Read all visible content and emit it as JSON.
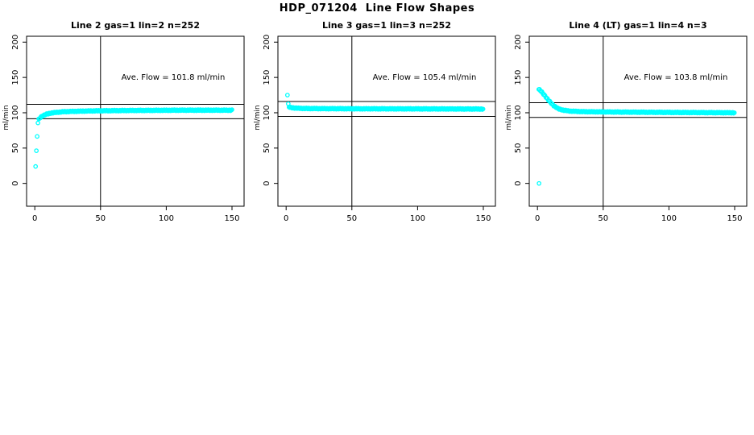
{
  "page": {
    "title": "HDP_071204  Line Flow Shapes",
    "background": "#ffffff"
  },
  "colors": {
    "points": "#00ffff",
    "axis": "#000000",
    "text": "#000000",
    "ref_line": "#000000"
  },
  "chart_data": [
    {
      "type": "scatter",
      "title": "Line 2 gas=1 lin=2 n=252",
      "annotation": "Ave. Flow =  101.8  ml/min",
      "ave_flow_ml_min": 101.8,
      "n_points_label": 252,
      "xlabel": "",
      "ylabel": "ml/min",
      "xticks": [
        0,
        50,
        100,
        150
      ],
      "yticks": [
        0,
        50,
        100,
        150,
        200
      ],
      "xlim": [
        -6.25,
        159.2
      ],
      "ylim": [
        -32.3,
        208.3
      ],
      "grid": false,
      "vline_x": 50,
      "ref_lines_y": [
        91.6,
        112.0
      ],
      "point_step_x": 0.6,
      "jitter_amp": 0.8,
      "curve_points": [
        [
          0.6,
          24
        ],
        [
          1.8,
          67
        ],
        [
          2.4,
          86
        ],
        [
          3,
          90.5
        ],
        [
          4,
          93
        ],
        [
          5,
          94.5
        ],
        [
          7,
          96.5
        ],
        [
          9,
          98
        ],
        [
          12,
          99.5
        ],
        [
          16,
          100.5
        ],
        [
          22,
          101.5
        ],
        [
          30,
          102
        ],
        [
          45,
          102.7
        ],
        [
          70,
          103.2
        ],
        [
          110,
          103.6
        ],
        [
          150,
          103.6
        ]
      ],
      "outliers": []
    },
    {
      "type": "scatter",
      "title": "Line 3 gas=1 lin=3 n=252",
      "annotation": "Ave. Flow =  105.4  ml/min",
      "ave_flow_ml_min": 105.4,
      "n_points_label": 252,
      "xlabel": "",
      "ylabel": "ml/min",
      "xticks": [
        0,
        50,
        100,
        150
      ],
      "yticks": [
        0,
        50,
        100,
        150,
        200
      ],
      "xlim": [
        -6.25,
        159.2
      ],
      "ylim": [
        -32.3,
        208.3
      ],
      "grid": false,
      "vline_x": 50,
      "ref_lines_y": [
        94.9,
        115.9
      ],
      "point_step_x": 0.6,
      "jitter_amp": 0.8,
      "curve_points": [
        [
          1,
          125
        ],
        [
          1.6,
          112
        ],
        [
          2.2,
          108.5
        ],
        [
          3,
          107.5
        ],
        [
          5,
          107
        ],
        [
          8,
          106.5
        ],
        [
          15,
          106
        ],
        [
          30,
          105.8
        ],
        [
          60,
          105.6
        ],
        [
          100,
          105.5
        ],
        [
          150,
          105.3
        ]
      ],
      "outliers": []
    },
    {
      "type": "scatter",
      "title": "Line 4 (LT) gas=1 lin=4 n=3",
      "annotation": "Ave. Flow =  103.8  ml/min",
      "ave_flow_ml_min": 103.8,
      "n_points_label": 3,
      "xlabel": "",
      "ylabel": "ml/min",
      "xticks": [
        0,
        50,
        100,
        150
      ],
      "yticks": [
        0,
        50,
        100,
        150,
        200
      ],
      "xlim": [
        -6.25,
        159.2
      ],
      "ylim": [
        -32.3,
        208.3
      ],
      "grid": false,
      "vline_x": 50,
      "ref_lines_y": [
        93.4,
        114.2
      ],
      "point_step_x": 0.6,
      "jitter_amp": 0.8,
      "curve_points": [
        [
          1,
          133
        ],
        [
          2,
          132
        ],
        [
          3,
          130
        ],
        [
          5,
          125.5
        ],
        [
          8,
          118.5
        ],
        [
          12,
          110.5
        ],
        [
          16,
          105.5
        ],
        [
          20,
          103.5
        ],
        [
          25,
          102.3
        ],
        [
          35,
          101.5
        ],
        [
          60,
          101
        ],
        [
          100,
          100.5
        ],
        [
          150,
          100
        ]
      ],
      "outliers": [
        [
          1.2,
          0
        ]
      ]
    }
  ]
}
